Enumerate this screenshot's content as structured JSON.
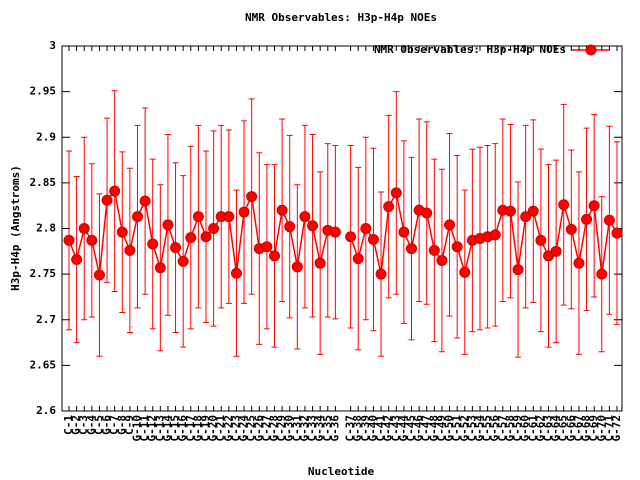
{
  "chart_data": {
    "type": "errorline",
    "title": "NMR Observables: H3p-H4p NOEs",
    "xlabel": "Nucleotide",
    "ylabel": "H3p-H4p (Angstroms)",
    "legend": "top-right",
    "categories": [
      "C-1",
      "G-2",
      "C-3",
      "G-4",
      "C-5",
      "G-6",
      "C-7",
      "G-8",
      "C-9",
      "G-10",
      "C-11",
      "G-12",
      "C-13",
      "G-14",
      "C-15",
      "G-16",
      "C-17",
      "G-18",
      "C-19",
      "G-20",
      "C-21",
      "G-22",
      "C-23",
      "G-24",
      "C-25",
      "G-26",
      "C-27",
      "G-28",
      "C-29",
      "G-30",
      "C-31",
      "G-32",
      "C-33",
      "G-34",
      "C-35",
      "G-36",
      null,
      "C-37",
      "G-38",
      "C-39",
      "G-40",
      "C-41",
      "G-42",
      "C-43",
      "G-44",
      "C-45",
      "G-46",
      "C-47",
      "G-48",
      "C-49",
      "G-50",
      "C-51",
      "G-52",
      "C-53",
      "G-54",
      "C-55",
      "G-56",
      "C-57",
      "G-58",
      "C-59",
      "G-60",
      "C-61",
      "G-62",
      "C-63",
      "G-64",
      "C-65",
      "G-66",
      "C-67",
      "G-68",
      "C-69",
      "G-70",
      "C-71",
      "G-72"
    ],
    "series": [
      {
        "name": "NMR Observables: H3p-H4p NOEs",
        "color": "#ff0000",
        "values": [
          2.787,
          2.766,
          2.8,
          2.787,
          2.749,
          2.831,
          2.841,
          2.796,
          2.776,
          2.813,
          2.83,
          2.783,
          2.757,
          2.804,
          2.779,
          2.764,
          2.79,
          2.813,
          2.791,
          2.8,
          2.813,
          2.813,
          2.751,
          2.818,
          2.835,
          2.778,
          2.78,
          2.77,
          2.82,
          2.802,
          2.758,
          2.813,
          2.803,
          2.762,
          2.798,
          2.796,
          null,
          2.791,
          2.767,
          2.8,
          2.788,
          2.75,
          2.824,
          2.839,
          2.796,
          2.778,
          2.82,
          2.817,
          2.776,
          2.765,
          2.804,
          2.78,
          2.752,
          2.787,
          2.789,
          2.791,
          2.793,
          2.82,
          2.819,
          2.755,
          2.813,
          2.819,
          2.787,
          2.77,
          2.775,
          2.826,
          2.799,
          2.762,
          2.81,
          2.825,
          2.75,
          2.809,
          2.795
        ],
        "errors": [
          0.098,
          0.091,
          0.1,
          0.084,
          0.089,
          0.09,
          0.11,
          0.088,
          0.09,
          0.1,
          0.102,
          0.093,
          0.091,
          0.099,
          0.093,
          0.094,
          0.1,
          0.1,
          0.094,
          0.107,
          0.1,
          0.095,
          0.091,
          0.1,
          0.107,
          0.105,
          0.09,
          0.1,
          0.1,
          0.1,
          0.09,
          0.1,
          0.1,
          0.1,
          0.095,
          0.095,
          null,
          0.1,
          0.1,
          0.1,
          0.1,
          0.09,
          0.1,
          0.111,
          0.1,
          0.1,
          0.1,
          0.1,
          0.1,
          0.1,
          0.1,
          0.1,
          0.09,
          0.1,
          0.1,
          0.1,
          0.1,
          0.1,
          0.095,
          0.096,
          0.1,
          0.1,
          0.1,
          0.1,
          0.1,
          0.11,
          0.087,
          0.1,
          0.1,
          0.1,
          0.085,
          0.103,
          0.1
        ]
      }
    ],
    "ylim": [
      2.6,
      3
    ],
    "yticks": [
      2.6,
      2.65,
      2.7,
      2.75,
      2.8,
      2.85,
      2.9,
      2.95,
      3
    ]
  }
}
